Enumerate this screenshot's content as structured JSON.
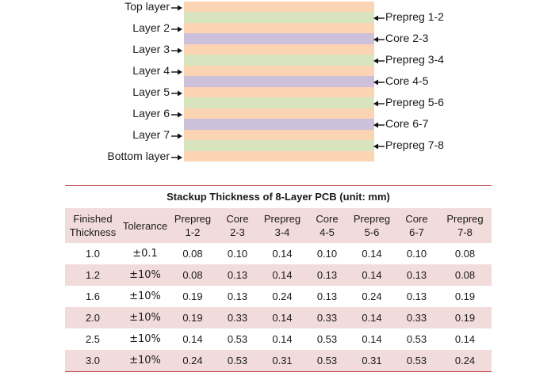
{
  "colors": {
    "copper": "#fbd4b4",
    "prepreg": "#d7e4bd",
    "core": "#ccc0da",
    "table_header_bg": "#f2dcdb",
    "table_stripe": "#f2dcdb",
    "rule": "#c0504d"
  },
  "stackup": {
    "layers": [
      "Top layer",
      "Layer 2",
      "Layer 3",
      "Layer 4",
      "Layer 5",
      "Layer 6",
      "Layer 7",
      "Bottom layer"
    ],
    "dielectrics": [
      "Prepreg 1-2",
      "Core 2-3",
      "Prepreg 3-4",
      "Core 4-5",
      "Prepreg 5-6",
      "Core 6-7",
      "Prepreg 7-8"
    ],
    "dielectric_types": [
      "prepreg",
      "core",
      "prepreg",
      "core",
      "prepreg",
      "core",
      "prepreg"
    ]
  },
  "table": {
    "title": "Stackup Thickness of 8-Layer PCB (unit: mm)",
    "headers": [
      [
        "Finished",
        "Thickness"
      ],
      [
        "Tolerance",
        ""
      ],
      [
        "Prepreg",
        "1-2"
      ],
      [
        "Core",
        "2-3"
      ],
      [
        "Prepreg",
        "3-4"
      ],
      [
        "Core",
        "4-5"
      ],
      [
        "Prepreg",
        "5-6"
      ],
      [
        "Core",
        "6-7"
      ],
      [
        "Prepreg",
        "7-8"
      ]
    ],
    "rows": [
      [
        "1.0",
        "±0.1",
        "0.08",
        "0.10",
        "0.14",
        "0.10",
        "0.14",
        "0.10",
        "0.08"
      ],
      [
        "1.2",
        "±10%",
        "0.08",
        "0.13",
        "0.14",
        "0.13",
        "0.14",
        "0.13",
        "0.08"
      ],
      [
        "1.6",
        "±10%",
        "0.19",
        "0.13",
        "0.24",
        "0.13",
        "0.24",
        "0.13",
        "0.19"
      ],
      [
        "2.0",
        "±10%",
        "0.19",
        "0.33",
        "0.14",
        "0.33",
        "0.14",
        "0.33",
        "0.19"
      ],
      [
        "2.5",
        "±10%",
        "0.14",
        "0.53",
        "0.14",
        "0.53",
        "0.14",
        "0.53",
        "0.14"
      ],
      [
        "3.0",
        "±10%",
        "0.24",
        "0.53",
        "0.31",
        "0.53",
        "0.31",
        "0.53",
        "0.24"
      ]
    ]
  }
}
